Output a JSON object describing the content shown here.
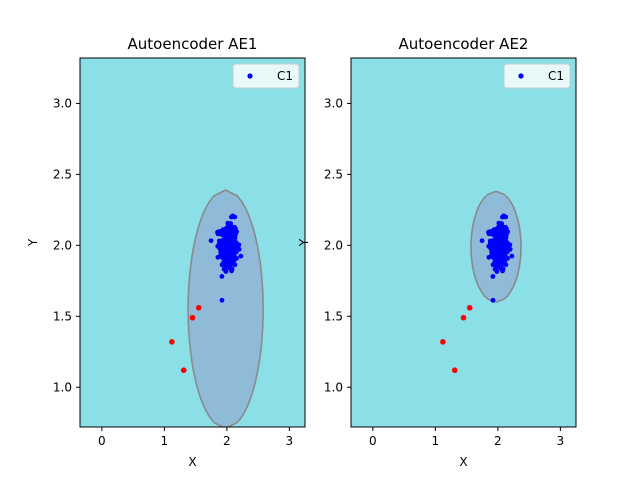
{
  "chart_data": [
    {
      "type": "scatter",
      "title": "Autoencoder AE1",
      "xlabel": "X",
      "ylabel": "Y",
      "xlim": [
        -0.35,
        3.25
      ],
      "ylim": [
        0.72,
        3.32
      ],
      "xticks": [
        "0",
        "1",
        "2",
        "3"
      ],
      "yticks": [
        "1.0",
        "1.5",
        "2.0",
        "2.5",
        "3.0"
      ],
      "legend": {
        "entries": [
          "C1"
        ],
        "position": "top-right"
      },
      "background_color": "#8ae0e6",
      "region_color": "#8fbad8",
      "region_edge_color": "#8a8a8a",
      "region": {
        "description": "inlier decision region (elliptical)",
        "center": [
          1.98,
          1.55
        ],
        "half_width": 0.6,
        "half_height": 0.84
      },
      "series": [
        {
          "name": "C1",
          "color": "#0000ff",
          "center": [
            2.03,
            1.99
          ],
          "spread": [
            0.07,
            0.09
          ],
          "count": 300
        },
        {
          "name": "",
          "color": "#ff0000",
          "points": [
            [
              1.12,
              1.32
            ],
            [
              1.31,
              1.12
            ],
            [
              1.45,
              1.49
            ],
            [
              1.55,
              1.56
            ]
          ]
        }
      ]
    },
    {
      "type": "scatter",
      "title": "Autoencoder AE2",
      "xlabel": "X",
      "ylabel": "Y",
      "xlim": [
        -0.35,
        3.25
      ],
      "ylim": [
        0.72,
        3.32
      ],
      "xticks": [
        "0",
        "1",
        "2",
        "3"
      ],
      "yticks": [
        "1.0",
        "1.5",
        "2.0",
        "2.5",
        "3.0"
      ],
      "legend": {
        "entries": [
          "C1"
        ],
        "position": "top-right"
      },
      "background_color": "#8ae0e6",
      "region_color": "#8fbad8",
      "region_edge_color": "#8a8a8a",
      "region": {
        "description": "inlier decision region (elliptical)",
        "center": [
          1.97,
          1.99
        ],
        "half_width": 0.4,
        "half_height": 0.39
      },
      "series": [
        {
          "name": "C1",
          "color": "#0000ff",
          "center": [
            2.03,
            1.99
          ],
          "spread": [
            0.07,
            0.09
          ],
          "count": 300
        },
        {
          "name": "",
          "color": "#ff0000",
          "points": [
            [
              1.12,
              1.32
            ],
            [
              1.31,
              1.12
            ],
            [
              1.45,
              1.49
            ],
            [
              1.55,
              1.56
            ]
          ]
        }
      ]
    }
  ]
}
